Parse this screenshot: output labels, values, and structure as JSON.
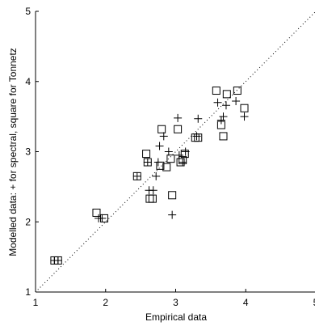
{
  "chart_data": {
    "type": "scatter",
    "xlabel": "Empirical data",
    "ylabel": "Modelled data: + for spectral, square for Tonnetz",
    "xlim": [
      1,
      5
    ],
    "ylim": [
      1,
      5
    ],
    "x_ticks": [
      "1",
      "2",
      "3",
      "4",
      "5"
    ],
    "y_ticks": [
      "1",
      "2",
      "3",
      "4",
      "5"
    ],
    "grid": false,
    "reference_line": {
      "style": "dotted",
      "from": [
        1,
        1
      ],
      "to": [
        5,
        5
      ]
    },
    "series": [
      {
        "name": "spectral",
        "marker": "+",
        "points": [
          [
            1.27,
            1.45
          ],
          [
            1.32,
            1.45
          ],
          [
            1.9,
            2.05
          ],
          [
            1.95,
            2.05
          ],
          [
            2.45,
            2.65
          ],
          [
            2.6,
            2.85
          ],
          [
            2.62,
            2.45
          ],
          [
            2.68,
            2.45
          ],
          [
            2.72,
            2.65
          ],
          [
            2.75,
            2.85
          ],
          [
            2.77,
            3.08
          ],
          [
            2.83,
            3.22
          ],
          [
            2.9,
            3.0
          ],
          [
            2.95,
            2.1
          ],
          [
            3.03,
            3.48
          ],
          [
            3.05,
            2.95
          ],
          [
            3.1,
            2.85
          ],
          [
            3.14,
            3.0
          ],
          [
            3.3,
            3.22
          ],
          [
            3.32,
            3.47
          ],
          [
            3.6,
            3.7
          ],
          [
            3.65,
            3.45
          ],
          [
            3.68,
            3.5
          ],
          [
            3.72,
            3.66
          ],
          [
            3.86,
            3.72
          ],
          [
            3.98,
            3.5
          ]
        ]
      },
      {
        "name": "Tonnetz",
        "marker": "square",
        "points": [
          [
            1.27,
            1.45
          ],
          [
            1.32,
            1.45
          ],
          [
            1.87,
            2.13
          ],
          [
            1.98,
            2.05
          ],
          [
            2.45,
            2.65
          ],
          [
            2.58,
            2.97
          ],
          [
            2.6,
            2.85
          ],
          [
            2.63,
            2.33
          ],
          [
            2.67,
            2.33
          ],
          [
            2.78,
            2.8
          ],
          [
            2.8,
            3.32
          ],
          [
            2.87,
            2.78
          ],
          [
            2.93,
            2.9
          ],
          [
            2.95,
            2.38
          ],
          [
            3.03,
            3.32
          ],
          [
            3.07,
            2.85
          ],
          [
            3.1,
            2.88
          ],
          [
            3.13,
            2.97
          ],
          [
            3.28,
            3.2
          ],
          [
            3.32,
            3.2
          ],
          [
            3.58,
            3.87
          ],
          [
            3.65,
            3.38
          ],
          [
            3.68,
            3.22
          ],
          [
            3.73,
            3.82
          ],
          [
            3.88,
            3.87
          ],
          [
            3.98,
            3.62
          ]
        ]
      }
    ]
  }
}
